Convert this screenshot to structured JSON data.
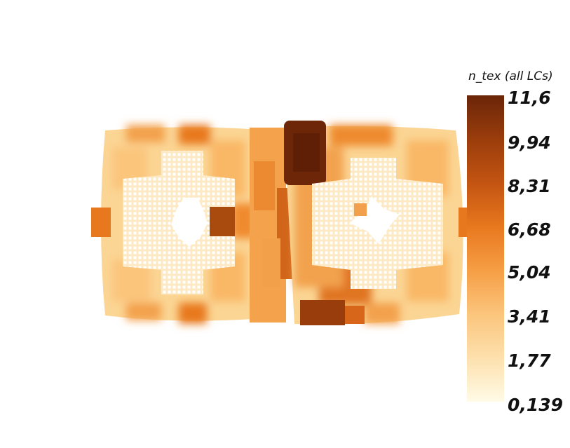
{
  "legend": {
    "title": "n_tex (all LCs)",
    "ticks": [
      "11,6",
      "9,94",
      "8,31",
      "6,68",
      "5,04",
      "3,41",
      "1,77",
      "0,139"
    ],
    "colormap": [
      "#fffbe6",
      "#fde0ad",
      "#fbc57c",
      "#f69e45",
      "#e8781e",
      "#c35412",
      "#9a3d0c",
      "#6b2508"
    ]
  }
}
